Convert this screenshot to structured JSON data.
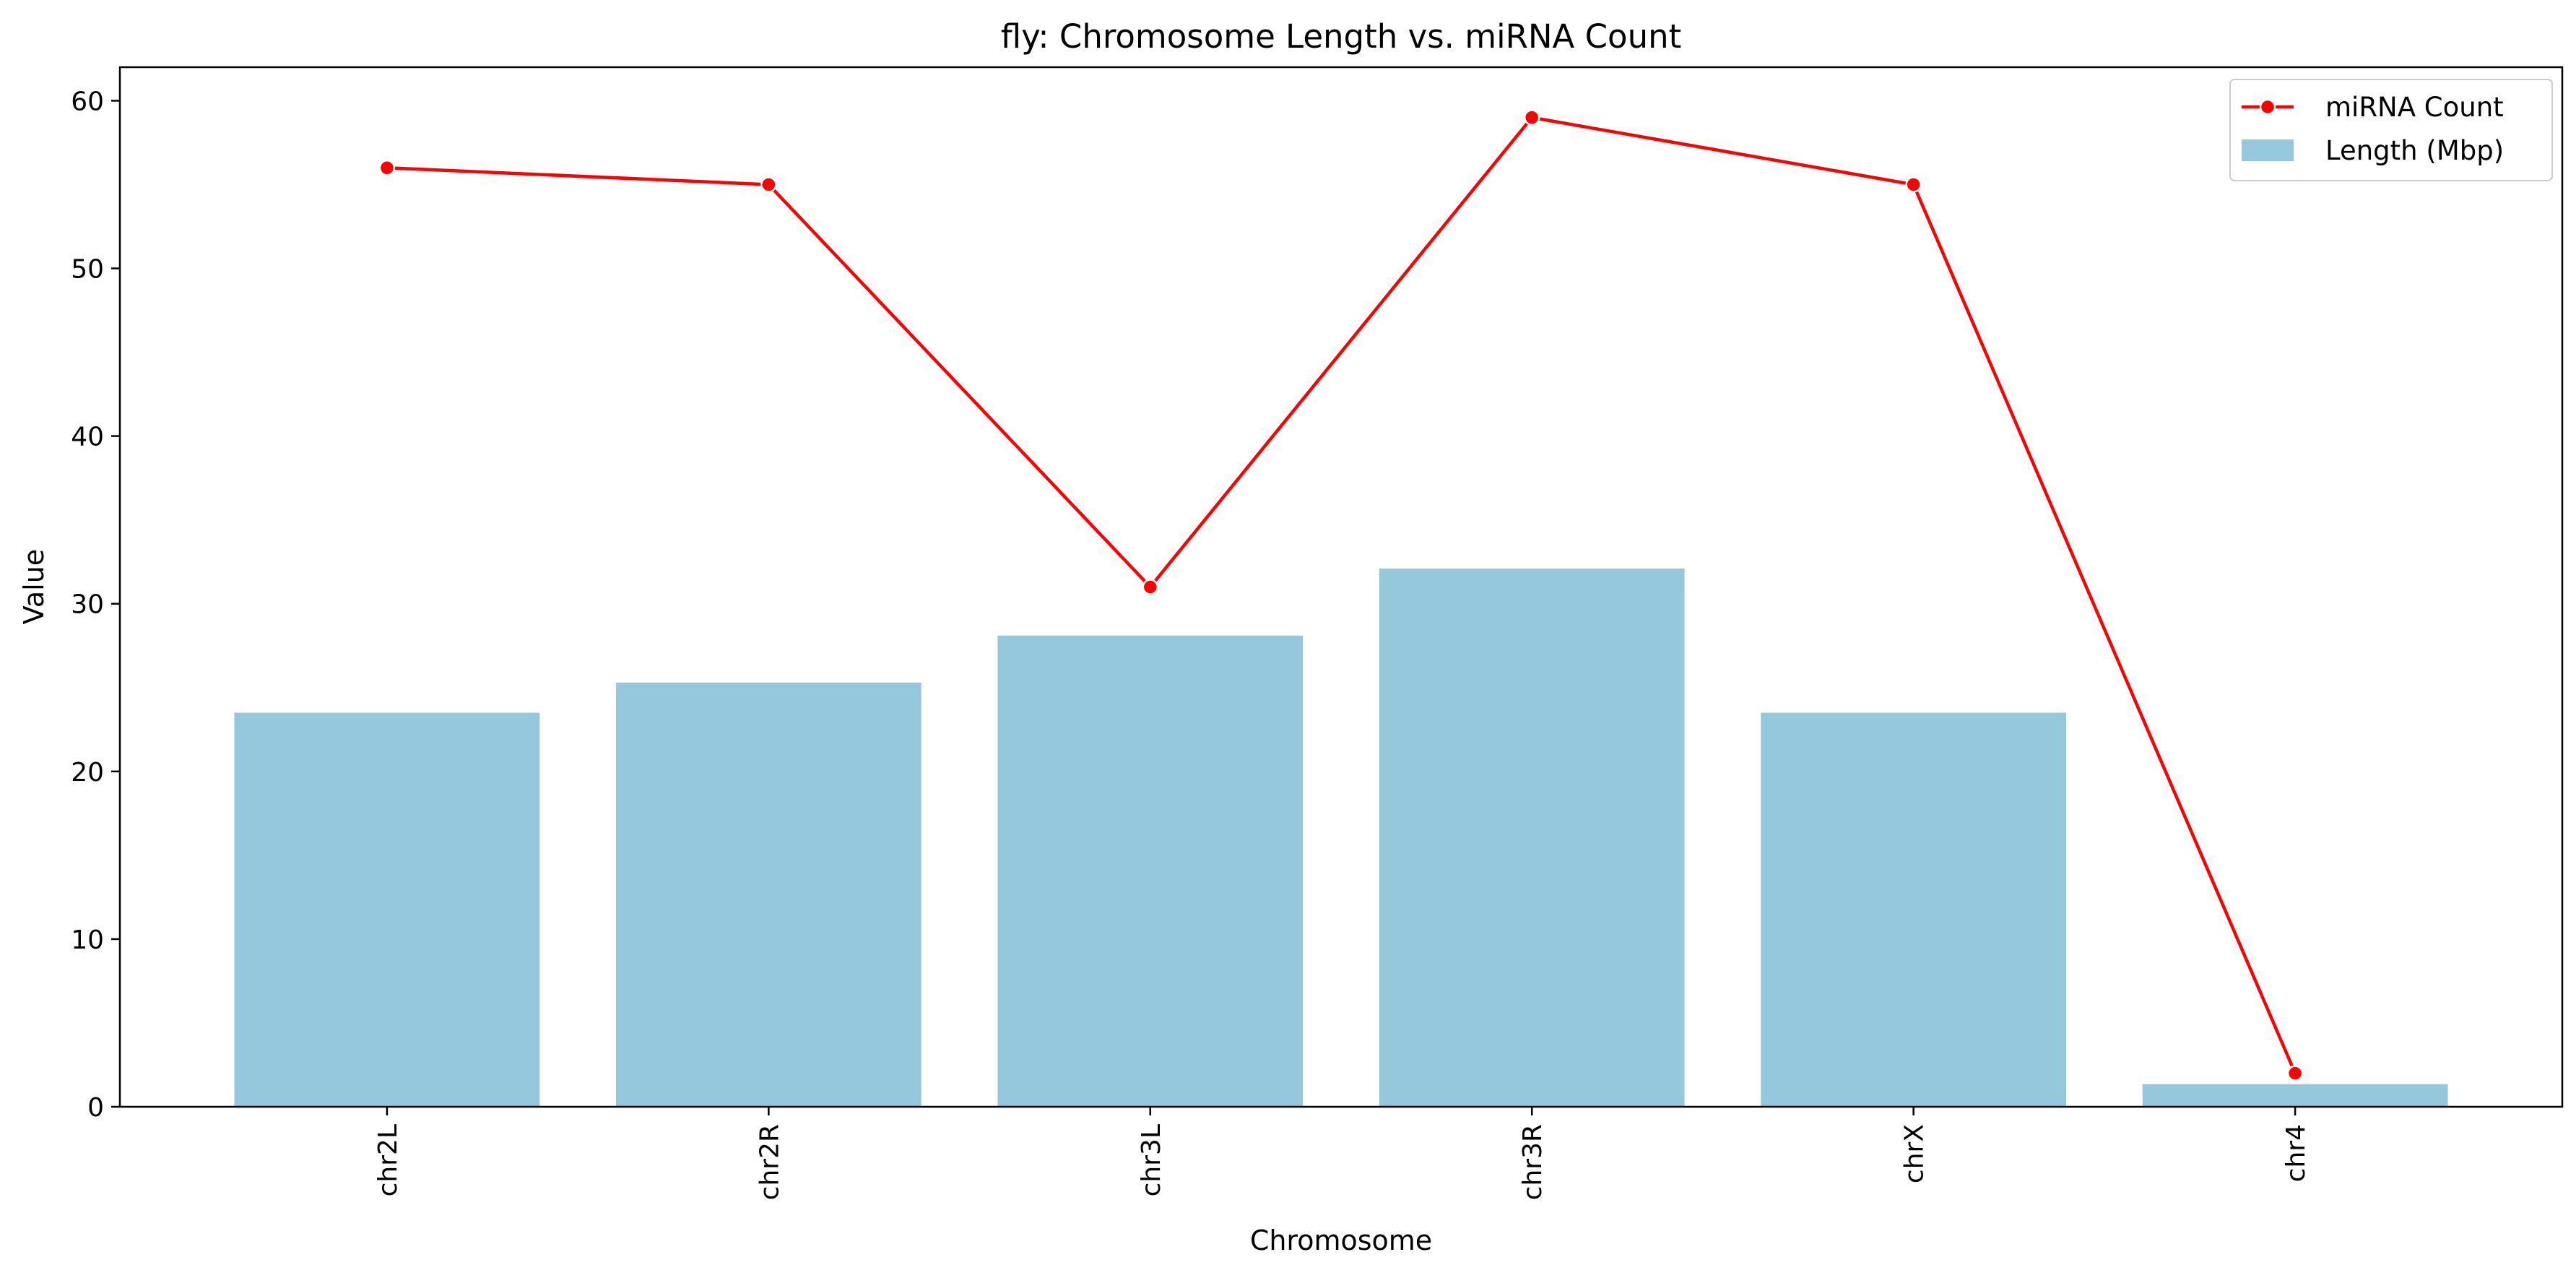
{
  "chart_data": {
    "type": "bar",
    "title": "fly: Chromosome Length vs. miRNA Count",
    "xlabel": "Chromosome",
    "ylabel": "Value",
    "categories": [
      "chr2L",
      "chr2R",
      "chr3L",
      "chr3R",
      "chrX",
      "chr4"
    ],
    "ylim": [
      0,
      62
    ],
    "yticks": [
      0,
      10,
      20,
      30,
      40,
      50,
      60
    ],
    "grid": false,
    "legend_position": "top-right",
    "series": [
      {
        "name": "Length (Mbp)",
        "kind": "bar",
        "color": "#96c8dd",
        "values": [
          23.5,
          25.3,
          28.1,
          32.1,
          23.5,
          1.35
        ]
      },
      {
        "name": "miRNA Count",
        "kind": "line",
        "color": "#ff0000",
        "marker": "circle",
        "values": [
          56,
          55,
          31,
          59,
          55,
          2
        ]
      }
    ]
  }
}
